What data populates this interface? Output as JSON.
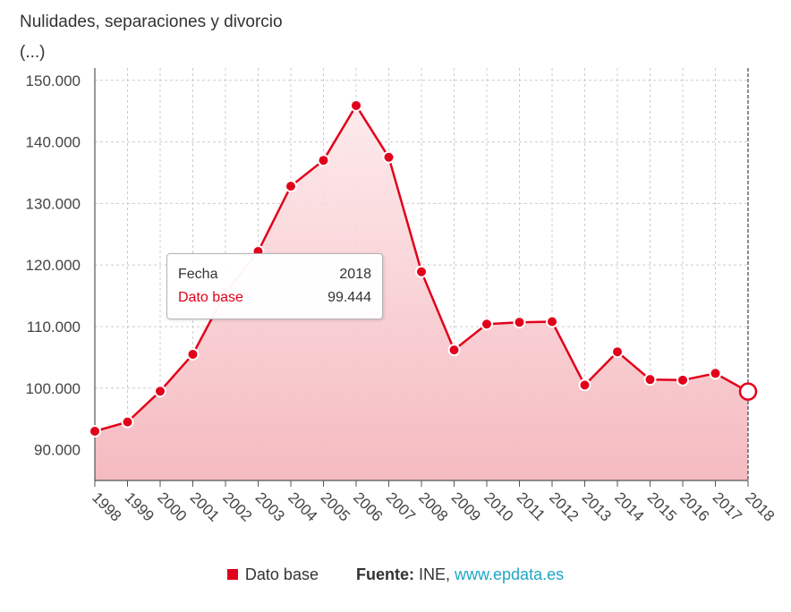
{
  "chart_data": {
    "type": "area",
    "title": "Nulidades, separaciones y divorcio (...)",
    "x": [
      "1998",
      "1999",
      "2000",
      "2001",
      "2002",
      "2003",
      "2004",
      "2005",
      "2006",
      "2007",
      "2008",
      "2009",
      "2010",
      "2011",
      "2012",
      "2013",
      "2014",
      "2015",
      "2016",
      "2017",
      "2018"
    ],
    "series": [
      {
        "name": "Dato base",
        "values": [
          93000,
          94500,
          99500,
          105500,
          115500,
          122200,
          132800,
          137000,
          145900,
          137500,
          118900,
          106200,
          110400,
          110700,
          110800,
          100500,
          105900,
          101400,
          101300,
          102400,
          99444
        ]
      }
    ],
    "yticks": [
      "90.000",
      "100.000",
      "110.000",
      "120.000",
      "130.000",
      "140.000",
      "150.000"
    ],
    "ylim": [
      85000,
      152000
    ],
    "grid": true,
    "legend_position": "bottom",
    "colors": {
      "line": "#e2001a",
      "fill_top": "#f7c9cd",
      "grid": "#cccccc"
    }
  },
  "tooltip": {
    "label_1": "Fecha",
    "value_1": "2018",
    "label_2": "Dato base",
    "value_2": "99.444"
  },
  "footer": {
    "legend_label": "Dato base",
    "source_label": "Fuente:",
    "source_text": "INE,",
    "source_link": "www.epdata.es"
  }
}
